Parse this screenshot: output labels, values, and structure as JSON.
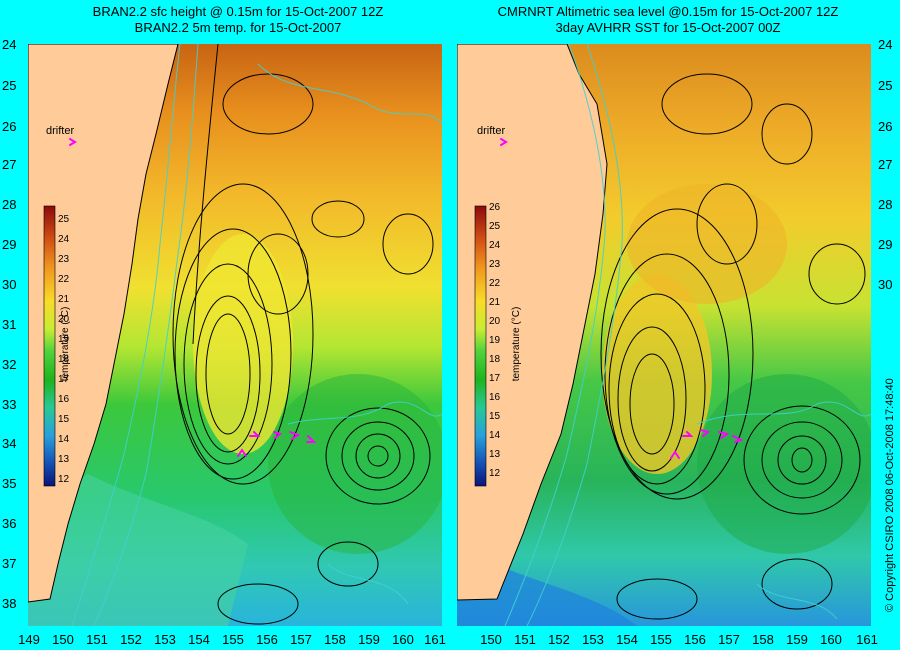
{
  "panels": {
    "left": {
      "title_line1": "BRAN2.2 sfc height @ 0.15m for 15-Oct-2007 12Z",
      "title_line2": "BRAN2.2 5m temp. for 15-Oct-2007",
      "drifter_label": "drifter",
      "colorbar": {
        "label": "temperature (°C)",
        "ticks": [
          "25",
          "24",
          "23",
          "22",
          "21",
          "20",
          "19",
          "18",
          "17",
          "16",
          "15",
          "14",
          "13",
          "12"
        ]
      }
    },
    "right": {
      "title_line1": "CMRNRT Altimetric sea level  @0.15m  for 15-Oct-2007 12Z",
      "title_line2": "3day AVHRR SST for 15-Oct-2007 00Z",
      "drifter_label": "drifter",
      "colorbar": {
        "label": "temperature (°C)",
        "ticks": [
          "26",
          "25",
          "24",
          "23",
          "22",
          "21",
          "20",
          "19",
          "18",
          "17",
          "16",
          "15",
          "14",
          "13",
          "12"
        ]
      }
    }
  },
  "y_axis_labels": [
    "24",
    "25",
    "26",
    "27",
    "28",
    "29",
    "30",
    "31",
    "32",
    "33",
    "34",
    "35",
    "36",
    "37",
    "38"
  ],
  "x_axis_labels_left": [
    "149",
    "150",
    "151",
    "152",
    "153",
    "154",
    "155",
    "156",
    "157",
    "158",
    "159",
    "160",
    "161"
  ],
  "x_axis_labels_right": [
    "150",
    "151",
    "152",
    "153",
    "154",
    "155",
    "156",
    "157",
    "158",
    "159",
    "160",
    "161"
  ],
  "copyright": "© Copyright CSIRO 2008   06-Oct-2008 17:48:40",
  "colors": {
    "background": "#00ffff",
    "land": "#ffcc99",
    "drifter_marker": "#ff00ff",
    "contour_height": "#000000",
    "contour_bathymetry": "#40d0d0"
  }
}
